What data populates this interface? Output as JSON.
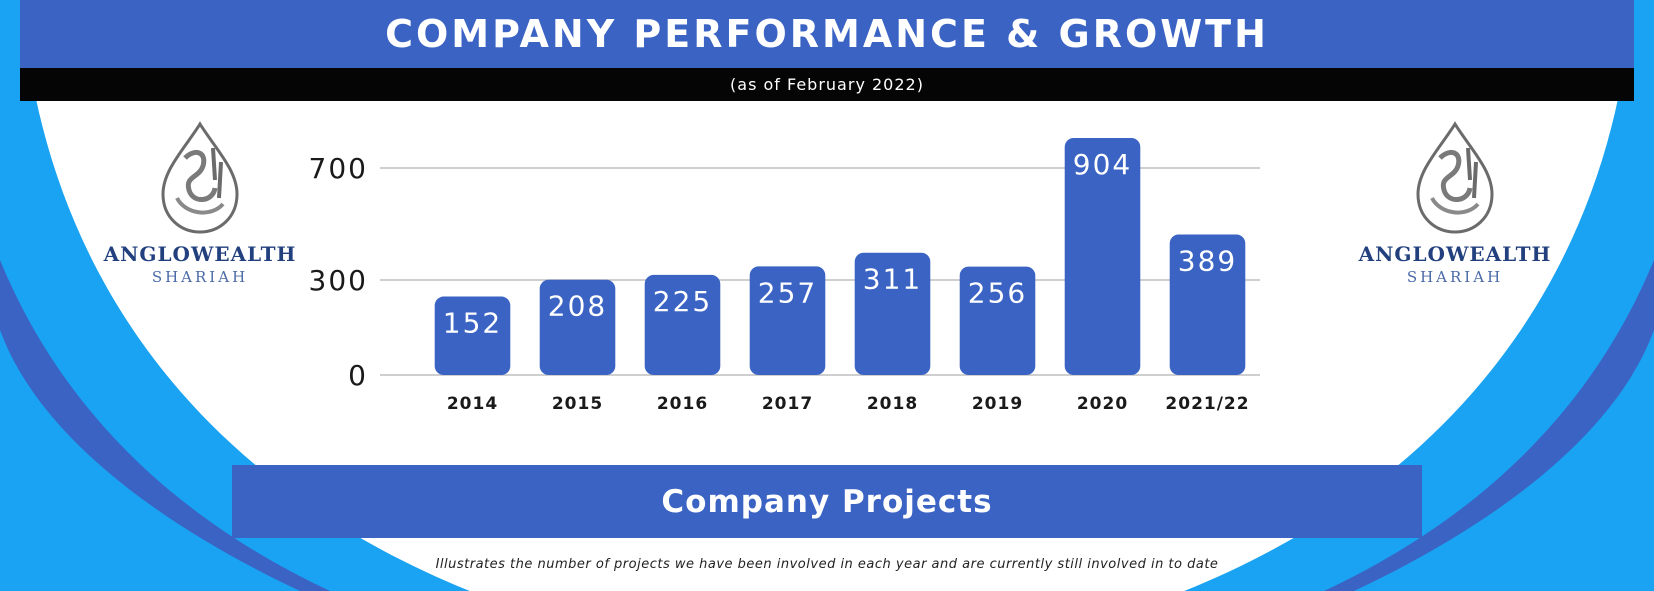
{
  "header": {
    "title": "COMPANY PERFORMANCE & GROWTH",
    "subtitle": "(as of February 2022)"
  },
  "logos": {
    "left": {
      "name": "ANGLOWEALTH",
      "sub": "SHARIAH"
    },
    "right": {
      "name": "ANGLOWEALTH",
      "sub": "SHARIAH"
    }
  },
  "footer": {
    "title": "Company Projects",
    "caption": "Illustrates the number of projects we have been involved in each year and are currently still involved in to date"
  },
  "colors": {
    "brand_blue": "#3a63c4",
    "bar_blue": "#3a63c4",
    "sky_blue": "#1aa3f2",
    "logo_navy": "#22407e"
  },
  "chart_data": {
    "type": "bar",
    "title": "Company Projects",
    "categories": [
      "2014",
      "2015",
      "2016",
      "2017",
      "2018",
      "2019",
      "2020",
      "2021/22"
    ],
    "values": [
      152,
      208,
      225,
      257,
      311,
      256,
      904,
      389
    ],
    "yticks": [
      0,
      300,
      700
    ],
    "xlabel": "",
    "ylabel": "",
    "grid": true,
    "legend": "none"
  }
}
